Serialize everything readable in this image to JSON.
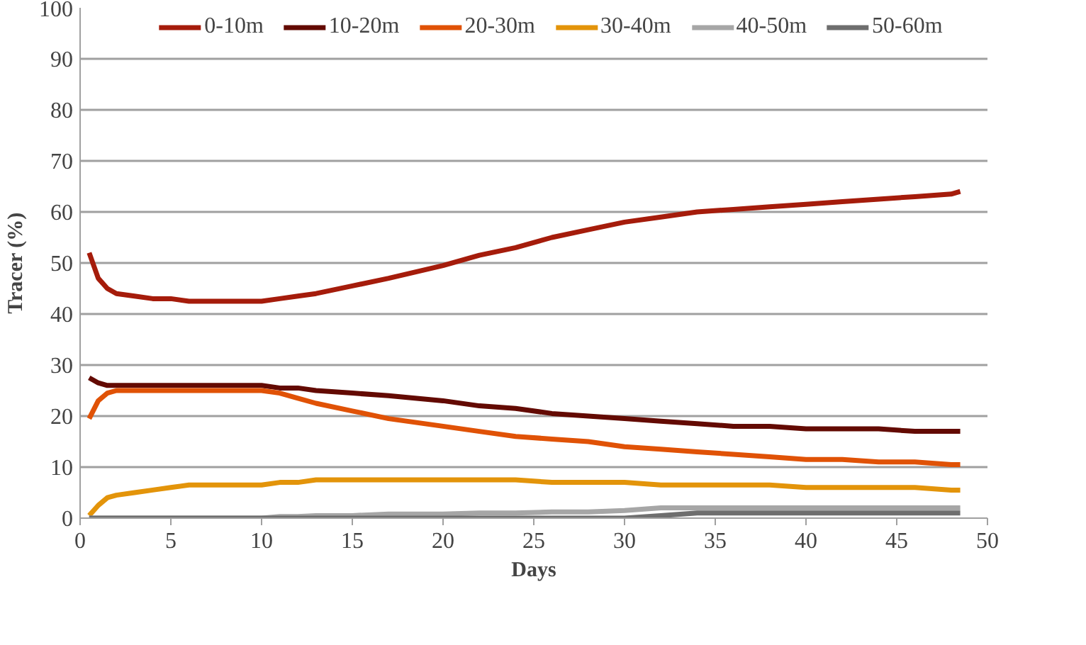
{
  "chart_data": {
    "type": "line",
    "xlabel": "Days",
    "ylabel": "Tracer (%)",
    "x": [
      0.5,
      1,
      1.5,
      2,
      3,
      4,
      5,
      6,
      8,
      10,
      11,
      12,
      13,
      15,
      17,
      20,
      22,
      24,
      26,
      28,
      30,
      32,
      34,
      36,
      38,
      40,
      42,
      44,
      46,
      48,
      48.5
    ],
    "series": [
      {
        "name": "0-10m",
        "color": "#a51c0b",
        "values": [
          52,
          47,
          45,
          44,
          43.5,
          43,
          43,
          42.5,
          42.5,
          42.5,
          43,
          43.5,
          44,
          45.5,
          47,
          49.5,
          51.5,
          53,
          55,
          56.5,
          58,
          59,
          60,
          60.5,
          61,
          61.5,
          62,
          62.5,
          63,
          63.5,
          64
        ]
      },
      {
        "name": "10-20m",
        "color": "#630a02",
        "values": [
          27.5,
          26.5,
          26,
          26,
          26,
          26,
          26,
          26,
          26,
          26,
          25.5,
          25.5,
          25,
          24.5,
          24,
          23,
          22,
          21.5,
          20.5,
          20,
          19.5,
          19,
          18.5,
          18,
          18,
          17.5,
          17.5,
          17.5,
          17,
          17,
          17
        ]
      },
      {
        "name": "20-30m",
        "color": "#e05206",
        "values": [
          19.5,
          23,
          24.5,
          25,
          25,
          25,
          25,
          25,
          25,
          25,
          24.5,
          23.5,
          22.5,
          21,
          19.5,
          18,
          17,
          16,
          15.5,
          15,
          14,
          13.5,
          13,
          12.5,
          12,
          11.5,
          11.5,
          11,
          11,
          10.5,
          10.5
        ]
      },
      {
        "name": "30-40m",
        "color": "#e3940a",
        "values": [
          0.5,
          2.5,
          4,
          4.5,
          5,
          5.5,
          6,
          6.5,
          6.5,
          6.5,
          7,
          7,
          7.5,
          7.5,
          7.5,
          7.5,
          7.5,
          7.5,
          7,
          7,
          7,
          6.5,
          6.5,
          6.5,
          6.5,
          6,
          6,
          6,
          6,
          5.5,
          5.5
        ]
      },
      {
        "name": "40-50m",
        "color": "#a6a6a6",
        "values": [
          0,
          0,
          0,
          0,
          0,
          0,
          0,
          0,
          0,
          0,
          0.3,
          0.3,
          0.5,
          0.5,
          0.8,
          0.8,
          1,
          1,
          1.2,
          1.2,
          1.5,
          2,
          2,
          2,
          2,
          2,
          2,
          2,
          2,
          2,
          2
        ]
      },
      {
        "name": "50-60m",
        "color": "#6e6e6e",
        "values": [
          0,
          0,
          0,
          0,
          0,
          0,
          0,
          0,
          0,
          0,
          0,
          0,
          0,
          0,
          0,
          0,
          0,
          0,
          0,
          0,
          0,
          0.5,
          1,
          1,
          1,
          1,
          1,
          1,
          1,
          1,
          1
        ]
      }
    ],
    "xlim": [
      0,
      50
    ],
    "xticks": [
      0,
      5,
      10,
      15,
      20,
      25,
      30,
      35,
      40,
      45,
      50
    ],
    "ylim": [
      0,
      100
    ],
    "yticks": [
      0,
      10,
      20,
      30,
      40,
      50,
      60,
      70,
      80,
      90,
      100
    ],
    "grid": "y",
    "legend": "top",
    "marker": "none",
    "line_style": "solid"
  }
}
